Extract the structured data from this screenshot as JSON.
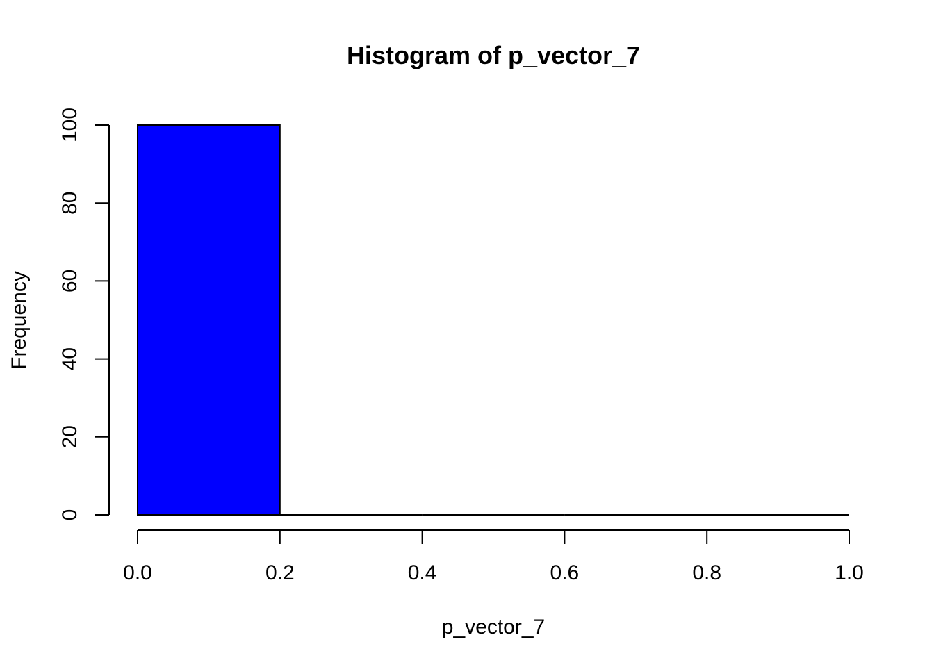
{
  "chart_data": {
    "type": "bar",
    "title": "Histogram of p_vector_7",
    "xlabel": "p_vector_7",
    "ylabel": "Frequency",
    "bins": [
      {
        "from": 0.0,
        "to": 0.2,
        "count": 100
      },
      {
        "from": 0.2,
        "to": 0.4,
        "count": 0
      },
      {
        "from": 0.4,
        "to": 0.6,
        "count": 0
      },
      {
        "from": 0.6,
        "to": 0.8,
        "count": 0
      },
      {
        "from": 0.8,
        "to": 1.0,
        "count": 0
      }
    ],
    "xlim": [
      0.0,
      1.0
    ],
    "ylim": [
      0,
      100
    ],
    "x_ticks": [
      "0.0",
      "0.2",
      "0.4",
      "0.6",
      "0.8",
      "1.0"
    ],
    "y_ticks": [
      "0",
      "20",
      "40",
      "60",
      "80",
      "100"
    ],
    "bar_color": "#0000ff",
    "grid": false
  }
}
